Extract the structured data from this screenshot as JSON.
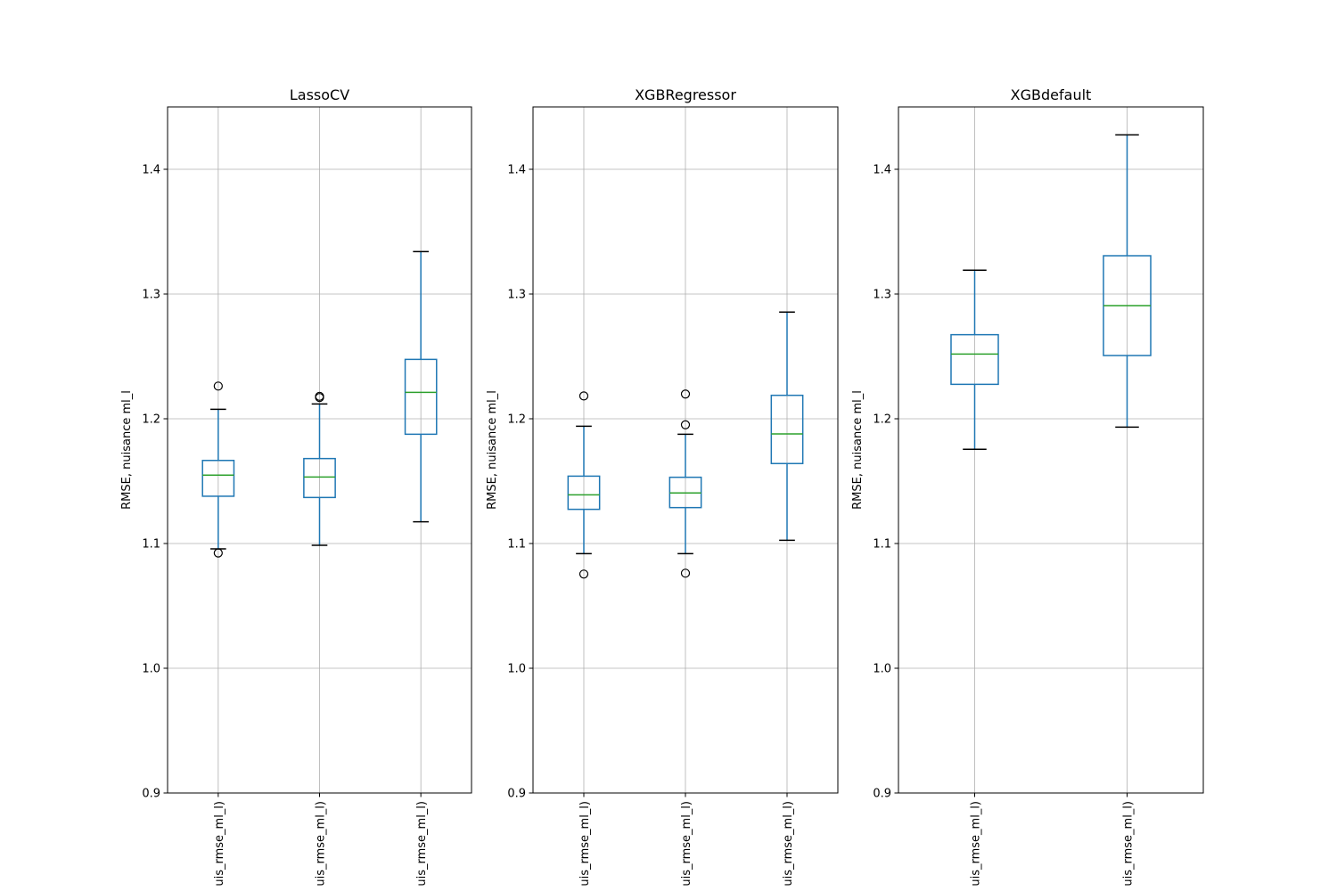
{
  "chart_data": [
    {
      "type": "box",
      "title": "LassoCV",
      "ylabel": "RMSE, nuisance ml_l",
      "ylim": [
        0.9,
        1.45
      ],
      "yticks": [
        0.9,
        1.0,
        1.1,
        1.2,
        1.3,
        1.4
      ],
      "ytick_labels": [
        "0.9",
        "1.0",
        "1.1",
        "1.2",
        "1.3",
        "1.4"
      ],
      "grid": true,
      "categories": [
        "uis_rmse_ml_l)",
        "uis_rmse_ml_l)",
        "uis_rmse_ml_l)"
      ],
      "boxes": [
        {
          "whislo": 1.0957,
          "q1": 1.1379,
          "med": 1.1548,
          "q3": 1.1666,
          "whishi": 1.2076,
          "fliers": [
            1.2262,
            1.0924
          ]
        },
        {
          "whislo": 1.0986,
          "q1": 1.1369,
          "med": 1.1533,
          "q3": 1.1681,
          "whishi": 1.2119,
          "fliers": [
            1.217,
            1.218
          ]
        },
        {
          "whislo": 1.1174,
          "q1": 1.1876,
          "med": 1.2212,
          "q3": 1.2476,
          "whishi": 1.334,
          "fliers": []
        }
      ]
    },
    {
      "type": "box",
      "title": "XGBRegressor",
      "ylabel": "RMSE, nuisance ml_l",
      "ylim": [
        0.9,
        1.45
      ],
      "yticks": [
        0.9,
        1.0,
        1.1,
        1.2,
        1.3,
        1.4
      ],
      "ytick_labels": [
        "0.9",
        "1.0",
        "1.1",
        "1.2",
        "1.3",
        "1.4"
      ],
      "grid": true,
      "categories": [
        "uis_rmse_ml_l)",
        "uis_rmse_ml_l)",
        "uis_rmse_ml_l)"
      ],
      "boxes": [
        {
          "whislo": 1.0919,
          "q1": 1.1274,
          "med": 1.139,
          "q3": 1.154,
          "whishi": 1.194,
          "fliers": [
            1.2183,
            1.0755
          ]
        },
        {
          "whislo": 1.0919,
          "q1": 1.1288,
          "med": 1.1405,
          "q3": 1.1531,
          "whishi": 1.1876,
          "fliers": [
            1.2198,
            1.1952,
            1.0762
          ]
        },
        {
          "whislo": 1.1026,
          "q1": 1.1641,
          "med": 1.1879,
          "q3": 1.2188,
          "whishi": 1.2855,
          "fliers": []
        }
      ]
    },
    {
      "type": "box",
      "title": "XGBdefault",
      "ylabel": "RMSE, nuisance ml_l",
      "ylim": [
        0.9,
        1.45
      ],
      "yticks": [
        0.9,
        1.0,
        1.1,
        1.2,
        1.3,
        1.4
      ],
      "ytick_labels": [
        "0.9",
        "1.0",
        "1.1",
        "1.2",
        "1.3",
        "1.4"
      ],
      "grid": true,
      "categories": [
        "uis_rmse_ml_l)",
        "uis_rmse_ml_l)"
      ],
      "boxes": [
        {
          "whislo": 1.1755,
          "q1": 1.2276,
          "med": 1.2519,
          "q3": 1.2674,
          "whishi": 1.3191,
          "fliers": []
        },
        {
          "whislo": 1.1933,
          "q1": 1.2507,
          "med": 1.2907,
          "q3": 1.3307,
          "whishi": 1.4276,
          "fliers": []
        }
      ]
    }
  ],
  "colors": {
    "box": "#1f77b4",
    "median": "#2ca02c",
    "caps": "#000000",
    "fliers": "#000000",
    "grid": "#b0b0b0"
  }
}
